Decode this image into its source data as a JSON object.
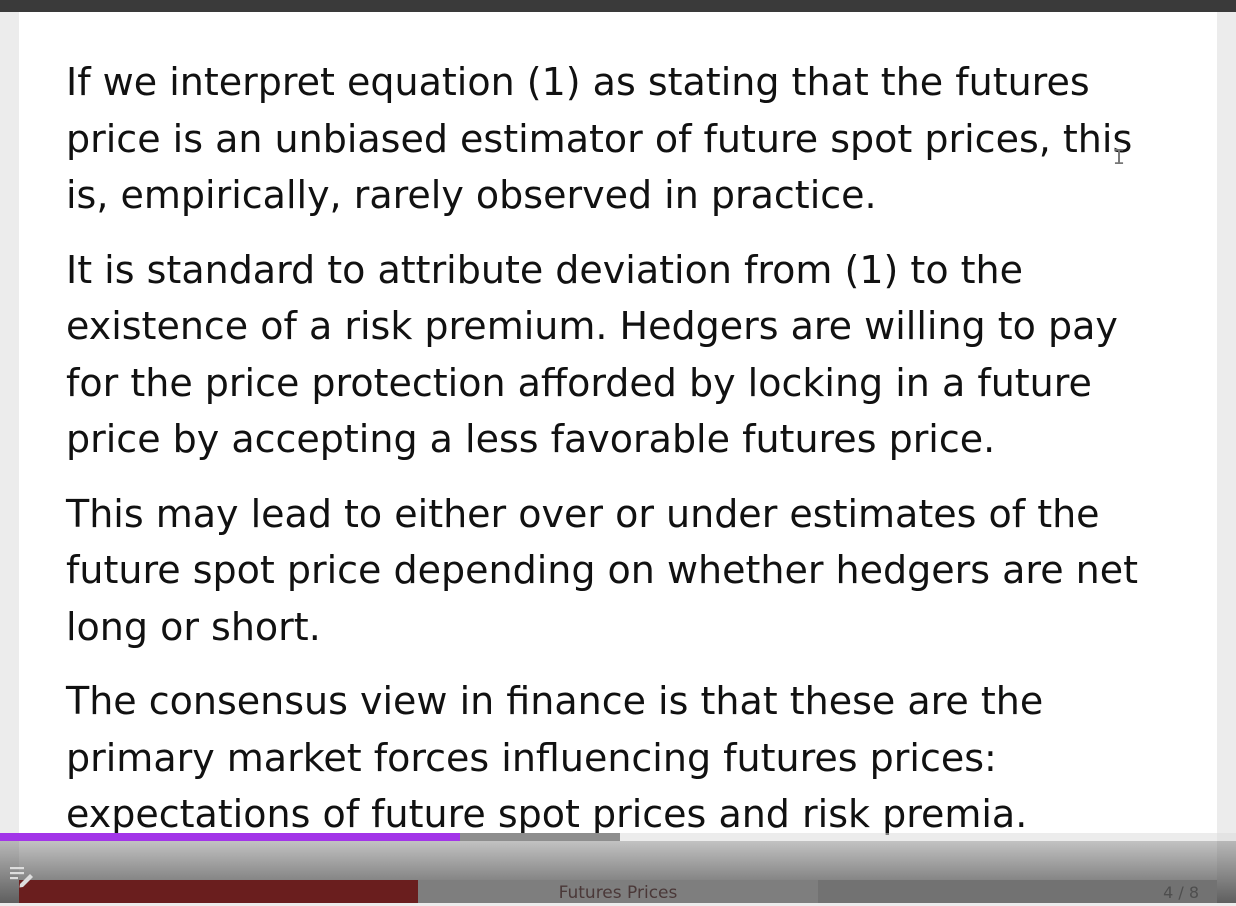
{
  "slide": {
    "paragraphs": [
      {
        "lines": [
          "If we interpret equation (1) as stating that the futures",
          "price is an unbiased estimator of future spot prices, this",
          "is, empirically, rarely observed in practice."
        ]
      },
      {
        "lines": [
          "It is standard to attribute deviation from (1) to the",
          "existence of a risk premium.  Hedgers are willing to pay",
          "for the price protection afforded by locking in a future",
          "price by accepting a less favorable futures price."
        ]
      },
      {
        "lines": [
          "This may lead to either over or under estimates of the",
          "future spot price depending on whether hedgers are net",
          "long or short."
        ]
      },
      {
        "lines": [
          "The consensus view in finance is that these are the",
          "primary market forces influencing futures prices:",
          "expectations of future spot prices and risk premia."
        ]
      }
    ],
    "footer": {
      "title": "Futures Prices",
      "page": "4 / 8"
    }
  },
  "player": {
    "progress_fraction": 0.372,
    "buffered_fraction": 0.502,
    "progress_color": "#a235e8",
    "playlist_icon": "playlist-edit-icon"
  }
}
